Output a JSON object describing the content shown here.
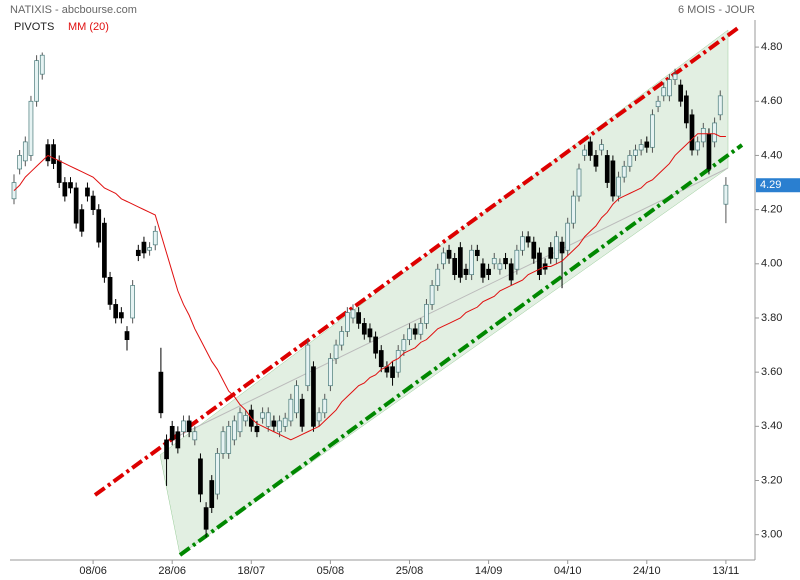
{
  "chart_data": {
    "type": "candlestick",
    "title": "NATIXIS - abcbourse.com",
    "period": "6 MOIS - JOUR",
    "pivots_label": "PIVOTS",
    "categories": [
      null,
      null,
      null,
      null,
      null,
      null,
      null,
      null,
      null,
      null,
      null,
      null,
      null,
      null,
      "08/06",
      null,
      null,
      null,
      null,
      null,
      null,
      null,
      null,
      null,
      null,
      null,
      null,
      null,
      "28/06",
      null,
      null,
      null,
      null,
      null,
      null,
      null,
      null,
      null,
      null,
      null,
      null,
      null,
      "18/07",
      null,
      null,
      null,
      null,
      null,
      null,
      null,
      null,
      null,
      null,
      null,
      null,
      null,
      "05/08",
      null,
      null,
      null,
      null,
      null,
      null,
      null,
      null,
      null,
      null,
      null,
      null,
      null,
      "25/08",
      null,
      null,
      null,
      null,
      null,
      null,
      null,
      null,
      null,
      null,
      null,
      null,
      null,
      "14/09",
      null,
      null,
      null,
      null,
      null,
      null,
      null,
      null,
      null,
      null,
      null,
      null,
      null,
      "04/10",
      null,
      null,
      null,
      null,
      null,
      null,
      null,
      null,
      null,
      null,
      null,
      null,
      null,
      "24/10",
      null,
      null,
      null,
      null,
      null,
      null,
      null,
      null,
      null,
      null,
      null,
      null,
      null,
      "13/11"
    ],
    "open": [
      4.24,
      4.35,
      4.38,
      4.4,
      4.6,
      4.7,
      4.44,
      4.44,
      4.38,
      4.3,
      4.3,
      4.28,
      4.2,
      4.28,
      4.25,
      4.2,
      4.15,
      3.95,
      3.85,
      3.82,
      3.75,
      3.8,
      4.05,
      4.08,
      4.05,
      4.07,
      3.6,
      3.35,
      3.4,
      3.38,
      3.38,
      3.42,
      3.35,
      3.28,
      3.1,
      3.2,
      3.15,
      3.3,
      3.3,
      3.35,
      3.38,
      3.42,
      3.46,
      3.4,
      3.43,
      3.4,
      3.42,
      3.38,
      3.4,
      3.42,
      3.45,
      3.5,
      3.55,
      3.62,
      3.42,
      3.45,
      3.55,
      3.65,
      3.7,
      3.75,
      3.8,
      3.82,
      3.78,
      3.76,
      3.73,
      3.68,
      3.62,
      3.62,
      3.6,
      3.68,
      3.72,
      3.76,
      3.74,
      3.78,
      3.85,
      3.92,
      4.0,
      4.05,
      4.02,
      4.06,
      3.98,
      3.96,
      4.05,
      4.0,
      3.98,
      4.0,
      3.98,
      4.02,
      4.0,
      3.98,
      4.05,
      4.1,
      4.08,
      4.04,
      4.0,
      4.06,
      4.02,
      4.08,
      4.05,
      4.15,
      4.25,
      4.4,
      4.45,
      4.4,
      4.42,
      4.4,
      4.38,
      4.25,
      4.32,
      4.36,
      4.4,
      4.42,
      4.45,
      4.43,
      4.58,
      4.62,
      4.62,
      4.68,
      4.66,
      4.62,
      4.55,
      4.42,
      4.45,
      4.48,
      4.45,
      4.55,
      4.22
    ],
    "high": [
      4.33,
      4.42,
      4.47,
      4.62,
      4.77,
      4.78,
      4.46,
      4.46,
      4.4,
      4.32,
      4.32,
      4.3,
      4.22,
      4.3,
      4.27,
      4.22,
      4.17,
      3.97,
      3.87,
      3.84,
      3.77,
      3.94,
      4.07,
      4.1,
      4.08,
      4.14,
      3.69,
      3.37,
      3.42,
      3.4,
      3.44,
      3.44,
      3.4,
      3.3,
      3.12,
      3.22,
      3.32,
      3.4,
      3.42,
      3.44,
      3.47,
      3.46,
      3.48,
      3.42,
      3.47,
      3.47,
      3.44,
      3.44,
      3.45,
      3.52,
      3.57,
      3.52,
      3.72,
      3.64,
      3.47,
      3.52,
      3.67,
      3.72,
      3.77,
      3.84,
      3.85,
      3.84,
      3.8,
      3.78,
      3.75,
      3.7,
      3.64,
      3.64,
      3.7,
      3.74,
      3.78,
      3.78,
      3.8,
      3.87,
      3.94,
      4.0,
      4.06,
      4.07,
      4.04,
      4.08,
      4.0,
      4.07,
      4.07,
      4.02,
      4.0,
      4.04,
      4.02,
      4.04,
      4.02,
      4.07,
      4.12,
      4.12,
      4.1,
      4.06,
      4.02,
      4.08,
      4.12,
      4.1,
      4.17,
      4.27,
      4.37,
      4.44,
      4.47,
      4.42,
      4.46,
      4.42,
      4.4,
      4.34,
      4.38,
      4.42,
      4.44,
      4.46,
      4.47,
      4.57,
      4.62,
      4.67,
      4.7,
      4.72,
      4.68,
      4.64,
      4.57,
      4.47,
      4.52,
      4.5,
      4.54,
      4.64,
      4.32
    ],
    "low": [
      4.22,
      4.33,
      4.36,
      4.38,
      4.58,
      4.68,
      4.36,
      4.35,
      4.28,
      4.23,
      4.26,
      4.13,
      4.1,
      4.23,
      4.18,
      4.06,
      3.93,
      3.83,
      3.78,
      3.78,
      3.68,
      3.78,
      4.01,
      4.02,
      4.03,
      4.05,
      3.43,
      3.18,
      3.33,
      3.3,
      3.36,
      3.36,
      3.33,
      3.12,
      2.99,
      3.08,
      3.13,
      3.28,
      3.28,
      3.33,
      3.36,
      3.4,
      3.38,
      3.36,
      3.41,
      3.38,
      3.38,
      3.36,
      3.38,
      3.4,
      3.43,
      3.38,
      3.53,
      3.38,
      3.4,
      3.43,
      3.53,
      3.63,
      3.68,
      3.73,
      3.78,
      3.76,
      3.72,
      3.71,
      3.65,
      3.6,
      3.58,
      3.55,
      3.58,
      3.66,
      3.7,
      3.72,
      3.72,
      3.76,
      3.83,
      3.9,
      3.98,
      4.0,
      3.94,
      3.93,
      3.94,
      3.94,
      4.01,
      3.93,
      3.94,
      3.98,
      3.96,
      3.98,
      3.92,
      3.96,
      4.03,
      4.06,
      4.0,
      3.94,
      3.96,
      4.0,
      4.0,
      3.91,
      4.03,
      4.13,
      4.23,
      4.38,
      4.38,
      4.34,
      4.4,
      4.28,
      4.23,
      4.23,
      4.3,
      4.34,
      4.38,
      4.4,
      4.41,
      4.41,
      4.56,
      4.6,
      4.6,
      4.66,
      4.58,
      4.5,
      4.4,
      4.4,
      4.43,
      4.33,
      4.43,
      4.53,
      4.15
    ],
    "close": [
      4.3,
      4.4,
      4.45,
      4.6,
      4.75,
      4.77,
      4.38,
      4.37,
      4.3,
      4.25,
      4.28,
      4.15,
      4.12,
      4.25,
      4.2,
      4.08,
      3.95,
      3.85,
      3.8,
      3.8,
      3.72,
      3.92,
      4.03,
      4.04,
      4.06,
      4.12,
      3.45,
      3.28,
      3.35,
      3.32,
      3.42,
      3.38,
      3.38,
      3.15,
      3.02,
      3.1,
      3.3,
      3.38,
      3.4,
      3.42,
      3.45,
      3.44,
      3.4,
      3.38,
      3.45,
      3.45,
      3.4,
      3.42,
      3.43,
      3.5,
      3.55,
      3.4,
      3.7,
      3.4,
      3.45,
      3.5,
      3.65,
      3.7,
      3.75,
      3.82,
      3.83,
      3.78,
      3.74,
      3.73,
      3.67,
      3.62,
      3.6,
      3.58,
      3.68,
      3.72,
      3.76,
      3.74,
      3.78,
      3.85,
      3.92,
      3.98,
      4.04,
      4.02,
      3.96,
      3.95,
      3.96,
      4.05,
      4.03,
      3.95,
      3.96,
      4.02,
      4.0,
      4.0,
      3.94,
      4.05,
      4.1,
      4.08,
      4.02,
      3.96,
      3.98,
      4.02,
      4.1,
      4.04,
      4.15,
      4.25,
      4.35,
      4.42,
      4.4,
      4.36,
      4.44,
      4.3,
      4.25,
      4.32,
      4.36,
      4.4,
      4.42,
      4.44,
      4.43,
      4.55,
      4.6,
      4.65,
      4.68,
      4.7,
      4.6,
      4.52,
      4.42,
      4.45,
      4.5,
      4.35,
      4.52,
      4.62,
      4.29
    ],
    "up_color": "#e6f3f3",
    "down_color": "#000000",
    "series": [
      {
        "name": "MM (20)",
        "color": "#e01010",
        "values": [
          4.27,
          4.29,
          4.32,
          4.34,
          4.36,
          4.38,
          4.4,
          4.39,
          4.38,
          4.37,
          4.36,
          4.35,
          4.34,
          4.33,
          4.32,
          4.3,
          4.28,
          4.27,
          4.26,
          4.24,
          4.23,
          4.22,
          4.21,
          4.2,
          4.19,
          4.18,
          4.11,
          4.04,
          3.97,
          3.9,
          3.85,
          3.81,
          3.76,
          3.72,
          3.68,
          3.64,
          3.61,
          3.57,
          3.53,
          3.51,
          3.48,
          3.46,
          3.43,
          3.41,
          3.4,
          3.39,
          3.38,
          3.37,
          3.36,
          3.35,
          3.36,
          3.37,
          3.38,
          3.39,
          3.4,
          3.42,
          3.44,
          3.46,
          3.49,
          3.51,
          3.53,
          3.55,
          3.56,
          3.58,
          3.59,
          3.61,
          3.62,
          3.64,
          3.65,
          3.67,
          3.68,
          3.69,
          3.71,
          3.72,
          3.74,
          3.76,
          3.77,
          3.78,
          3.79,
          3.8,
          3.82,
          3.83,
          3.84,
          3.86,
          3.87,
          3.88,
          3.9,
          3.91,
          3.92,
          3.93,
          3.94,
          3.96,
          3.97,
          3.98,
          3.99,
          3.99,
          4.0,
          4.01,
          4.03,
          4.05,
          4.07,
          4.1,
          4.12,
          4.14,
          4.17,
          4.19,
          4.22,
          4.24,
          4.25,
          4.26,
          4.27,
          4.28,
          4.3,
          4.31,
          4.33,
          4.35,
          4.37,
          4.4,
          4.42,
          4.44,
          4.46,
          4.48,
          4.48,
          4.48,
          4.48,
          4.47,
          4.47
        ]
      }
    ],
    "ylim": [
      2.925,
      4.9
    ],
    "yticks": [
      {
        "value": 3,
        "label": "3.00"
      },
      {
        "value": 3.2,
        "label": "3.20"
      },
      {
        "value": 3.4,
        "label": "3.40"
      },
      {
        "value": 3.6,
        "label": "3.60"
      },
      {
        "value": 3.8,
        "label": "3.80"
      },
      {
        "value": 4,
        "label": "4.00"
      },
      {
        "value": 4.2,
        "label": "4.20"
      },
      {
        "value": 4.4,
        "label": "4.40"
      },
      {
        "value": 4.6,
        "label": "4.60"
      },
      {
        "value": 4.8,
        "label": "4.80"
      }
    ]
  }
}
